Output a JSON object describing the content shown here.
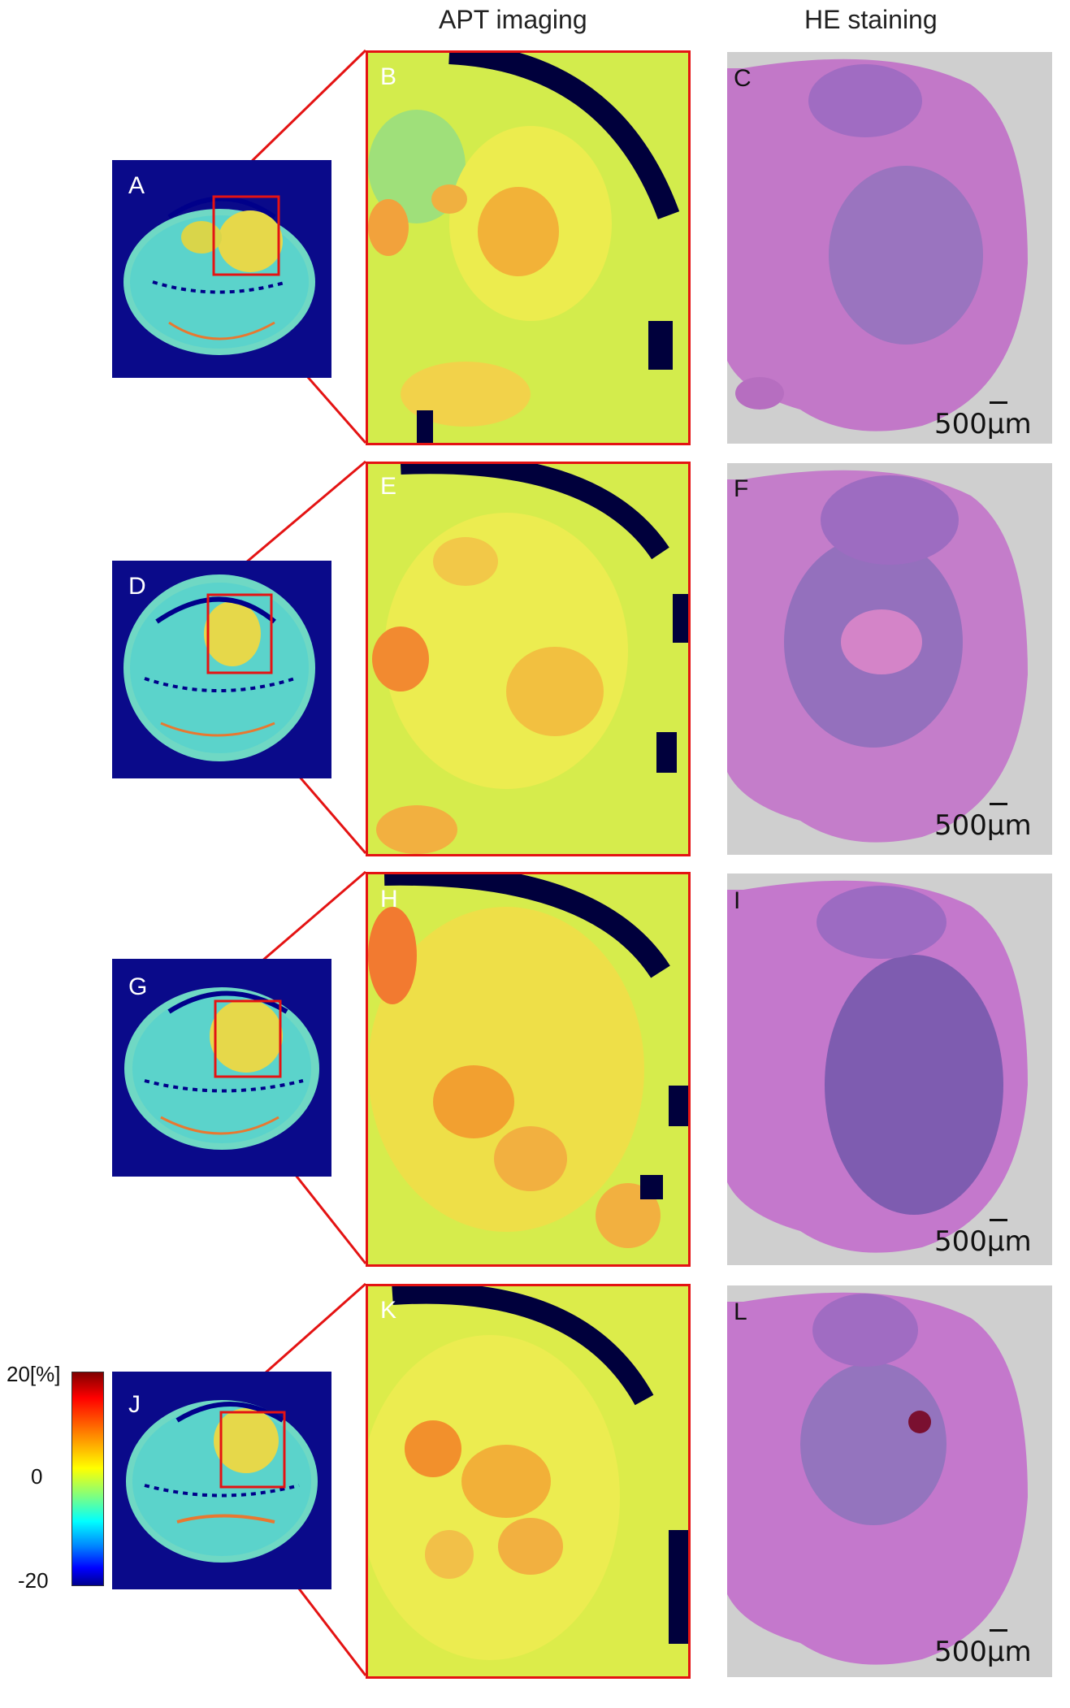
{
  "headers": {
    "apt": "APT imaging",
    "he": "HE staining"
  },
  "rows": [
    {
      "thumb_label": "A",
      "zoom_label": "B",
      "he_label": "C",
      "scale": "500μm"
    },
    {
      "thumb_label": "D",
      "zoom_label": "E",
      "he_label": "F",
      "scale": "500μm"
    },
    {
      "thumb_label": "G",
      "zoom_label": "H",
      "he_label": "I",
      "scale": "500μm"
    },
    {
      "thumb_label": "J",
      "zoom_label": "K",
      "he_label": "L",
      "scale": "500μm"
    }
  ],
  "colorbar": {
    "max_label": "20[%]",
    "mid_label": "0",
    "min_label": "-20",
    "colors": [
      "#7f0000",
      "#ff0000",
      "#ff8c00",
      "#ffff00",
      "#7fff7f",
      "#00ffff",
      "#0080ff",
      "#0000ff",
      "#00008f"
    ]
  },
  "colors": {
    "box_outline": "#e41313",
    "background_blue": "#0a0a8a",
    "tissue_pink": "#b86fc0",
    "tumor_purple": "#8d62b8"
  }
}
